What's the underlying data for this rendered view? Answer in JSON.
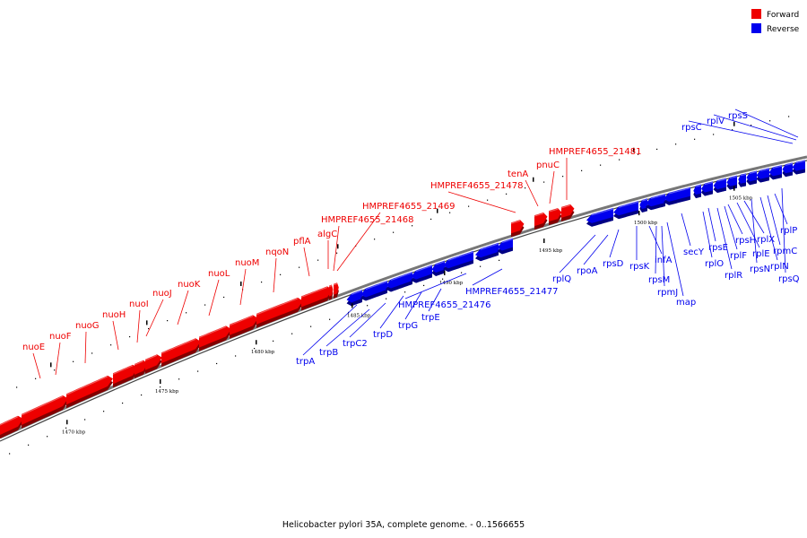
{
  "legend": {
    "forward": {
      "label": "Forward",
      "color": "#ee0000"
    },
    "reverse": {
      "label": "Reverse",
      "color": "#0000ee"
    }
  },
  "caption": "Helicobacter pylori 35A, complete genome. - 0..1566655",
  "backbone_color": "#777777",
  "forward_genes": [
    "nuoE",
    "nuoF",
    "nuoG",
    "nuoH",
    "nuoI",
    "nuoJ",
    "nuoK",
    "nuoL",
    "nuoM",
    "nqoN",
    "pflA",
    "algC",
    "HMPREF4655_21468",
    "HMPREF4655_21469",
    "HMPREF4655_21478",
    "tenA",
    "pnuC",
    "HMPREF4655_21481"
  ],
  "reverse_genes": [
    "trpA",
    "trpB",
    "trpC2",
    "trpD",
    "trpG",
    "trpE",
    "HMPREF4655_21476",
    "HMPREF4655_21477",
    "rplQ",
    "rpoA",
    "rpsD",
    "rpsK",
    "infA",
    "rpsM",
    "rpmJ",
    "map",
    "secY",
    "rplO",
    "rpsE",
    "rplR",
    "rplF",
    "rpsH",
    "rplE",
    "rplX",
    "rpsN",
    "rplN",
    "rpmC",
    "rplP",
    "rpsQ",
    "rpsC",
    "rplV",
    "rpsS"
  ],
  "ticks": [
    "1470 kbp",
    "1475 kbp",
    "1480 kbp",
    "1485 kbp",
    "1490 kbp",
    "1495 kbp",
    "1500 kbp",
    "1505 kbp"
  ]
}
